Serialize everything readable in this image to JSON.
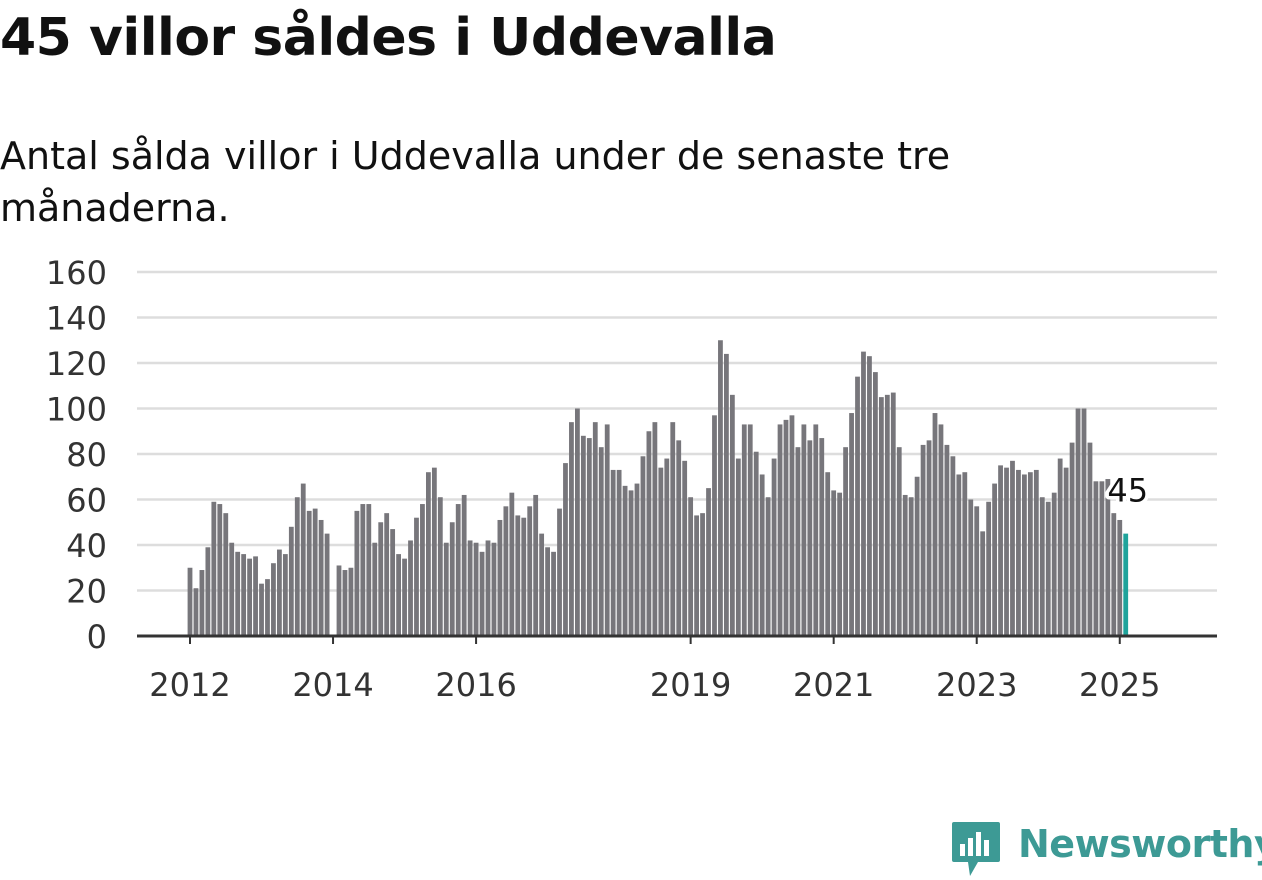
{
  "header": {
    "title": "45 villor såldes i Uddevalla",
    "subtitle": "Antal sålda villor i Uddevalla under de senaste tre månaderna."
  },
  "brand": {
    "name": "Newsworthy",
    "logo_icon": "bar-chart-speech-bubble-icon",
    "color": "#3d9a95"
  },
  "chart_data": {
    "type": "bar",
    "x_start": "2012-01",
    "x_step": "month",
    "x_ticks": [
      "2012",
      "2014",
      "2016",
      "2019",
      "2021",
      "2023",
      "2025"
    ],
    "y_ticks": [
      "0",
      "20",
      "40",
      "60",
      "80",
      "100",
      "120",
      "140",
      "160"
    ],
    "ylim": [
      0,
      160
    ],
    "grid": true,
    "colors": {
      "bar": "#77767b",
      "highlight": "#1fa39b",
      "grid": "#dddddd",
      "axis": "#333333"
    },
    "values": [
      30,
      21,
      29,
      39,
      59,
      58,
      54,
      41,
      37,
      36,
      34,
      35,
      23,
      25,
      32,
      38,
      36,
      48,
      61,
      67,
      55,
      56,
      51,
      45,
      0,
      31,
      29,
      30,
      55,
      58,
      58,
      41,
      50,
      54,
      47,
      36,
      34,
      42,
      52,
      58,
      72,
      74,
      61,
      41,
      50,
      58,
      62,
      42,
      41,
      37,
      42,
      41,
      51,
      57,
      63,
      53,
      52,
      57,
      62,
      45,
      39,
      37,
      56,
      76,
      94,
      100,
      88,
      87,
      94,
      83,
      93,
      73,
      73,
      66,
      64,
      67,
      79,
      90,
      94,
      74,
      78,
      94,
      86,
      77,
      61,
      53,
      54,
      65,
      97,
      130,
      124,
      106,
      78,
      93,
      93,
      81,
      71,
      61,
      78,
      93,
      95,
      97,
      83,
      93,
      86,
      93,
      87,
      72,
      64,
      63,
      83,
      98,
      114,
      125,
      123,
      116,
      105,
      106,
      107,
      83,
      62,
      61,
      70,
      84,
      86,
      98,
      93,
      84,
      79,
      71,
      72,
      60,
      57,
      46,
      59,
      67,
      75,
      74,
      77,
      73,
      71,
      72,
      73,
      61,
      59,
      63,
      78,
      74,
      85,
      100,
      100,
      85,
      68,
      68,
      69,
      54,
      51,
      45
    ],
    "annotation": {
      "text": "45"
    }
  }
}
